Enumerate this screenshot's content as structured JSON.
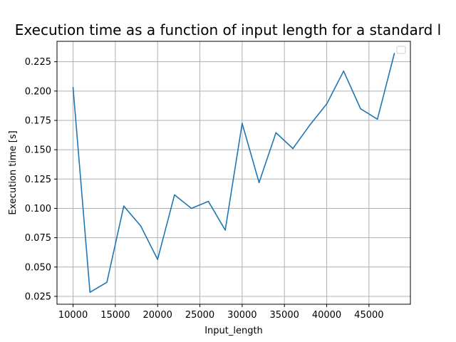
{
  "chart_data": {
    "type": "line",
    "title": "Execution time as a function of input length for a standard l",
    "xlabel": "Input_length",
    "ylabel": "Execution time [s]",
    "xlim": [
      8100,
      49900
    ],
    "ylim": [
      0.0183,
      0.2424
    ],
    "xticks": [
      10000,
      15000,
      20000,
      25000,
      30000,
      35000,
      40000,
      45000
    ],
    "xtick_labels": [
      "10000",
      "15000",
      "20000",
      "25000",
      "30000",
      "35000",
      "40000",
      "45000"
    ],
    "yticks": [
      0.025,
      0.05,
      0.075,
      0.1,
      0.125,
      0.15,
      0.175,
      0.2,
      0.225
    ],
    "ytick_labels": [
      "0.025",
      "0.050",
      "0.075",
      "0.100",
      "0.125",
      "0.150",
      "0.175",
      "0.200",
      "0.225"
    ],
    "grid": true,
    "legend": "top-right",
    "series": [
      {
        "color": "#1f77b4",
        "x": [
          10000,
          12000,
          14000,
          16000,
          18000,
          20000,
          22000,
          24000,
          26000,
          28000,
          30000,
          32000,
          34000,
          36000,
          38000,
          40000,
          42000,
          44000,
          46000,
          48000
        ],
        "y": [
          0.203,
          0.0285,
          0.037,
          0.102,
          0.085,
          0.0565,
          0.1115,
          0.1,
          0.106,
          0.0815,
          0.1725,
          0.122,
          0.1645,
          0.151,
          0.171,
          0.189,
          0.217,
          0.185,
          0.176,
          0.232
        ]
      }
    ]
  }
}
